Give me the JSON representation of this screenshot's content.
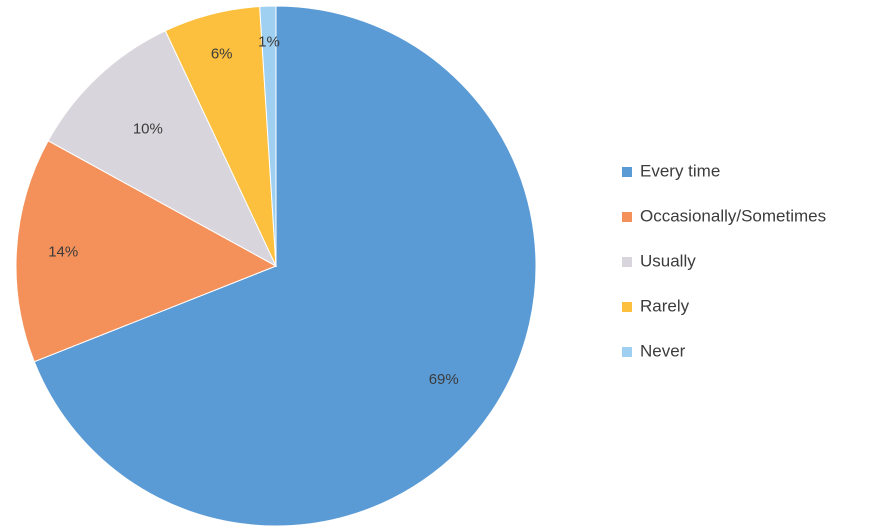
{
  "chart_data": {
    "type": "pie",
    "categories": [
      "Every time",
      "Occasionally/Sometimes",
      "Usually",
      "Rarely",
      "Never"
    ],
    "values": [
      69,
      14,
      10,
      6,
      1
    ],
    "data_labels": [
      "69%",
      "14%",
      "10%",
      "6%",
      "1%"
    ],
    "colors": [
      "#5b9bd5",
      "#f4915b",
      "#d9d5dc",
      "#fcc03e",
      "#9fd0f1"
    ],
    "start_angle": "12 o'clock",
    "direction": "clockwise",
    "legend": {
      "placement": "right",
      "entries": [
        "Every time",
        "Occasionally/Sometimes",
        "Usually",
        "Rarely",
        "Never"
      ]
    },
    "title": ""
  }
}
